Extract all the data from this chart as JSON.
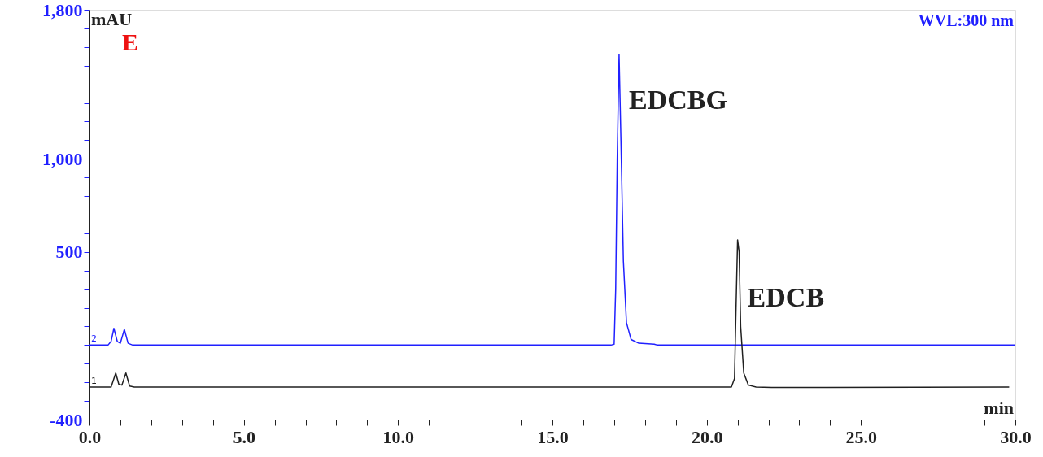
{
  "chart_data": {
    "type": "line",
    "xlabel": "min",
    "ylabel": "mAU",
    "annotations": [
      "E",
      "WVL:300 nm",
      {
        "text": "EDCBG",
        "x": 17.16,
        "y": 1560
      },
      {
        "text": "EDCB",
        "x": 21.0,
        "y": 565
      }
    ],
    "xlim": [
      0,
      30
    ],
    "ylim": [
      -400,
      1800
    ],
    "xticks": [
      {
        "value": 0,
        "label": "0.0"
      },
      {
        "value": 1,
        "label": null
      },
      {
        "value": 2,
        "label": null
      },
      {
        "value": 3,
        "label": null
      },
      {
        "value": 4,
        "label": null
      },
      {
        "value": 5,
        "label": "5.0"
      },
      {
        "value": 6,
        "label": null
      },
      {
        "value": 7,
        "label": null
      },
      {
        "value": 8,
        "label": null
      },
      {
        "value": 9,
        "label": null
      },
      {
        "value": 10,
        "label": "10.0"
      },
      {
        "value": 11,
        "label": null
      },
      {
        "value": 12,
        "label": null
      },
      {
        "value": 13,
        "label": null
      },
      {
        "value": 14,
        "label": null
      },
      {
        "value": 15,
        "label": "15.0"
      },
      {
        "value": 16,
        "label": null
      },
      {
        "value": 17,
        "label": null
      },
      {
        "value": 18,
        "label": null
      },
      {
        "value": 19,
        "label": null
      },
      {
        "value": 20,
        "label": "20.0"
      },
      {
        "value": 21,
        "label": null
      },
      {
        "value": 22,
        "label": null
      },
      {
        "value": 23,
        "label": null
      },
      {
        "value": 24,
        "label": null
      },
      {
        "value": 25,
        "label": "25.0"
      },
      {
        "value": 26,
        "label": null
      },
      {
        "value": 27,
        "label": null
      },
      {
        "value": 28,
        "label": null
      },
      {
        "value": 29,
        "label": null
      },
      {
        "value": 30,
        "label": "30.0"
      }
    ],
    "yticks": [
      {
        "value": -400,
        "label": "-400"
      },
      {
        "value": -300,
        "label": null
      },
      {
        "value": -200,
        "label": null
      },
      {
        "value": -100,
        "label": null
      },
      {
        "value": 0,
        "label": null
      },
      {
        "value": 100,
        "label": null
      },
      {
        "value": 200,
        "label": null
      },
      {
        "value": 300,
        "label": null
      },
      {
        "value": 400,
        "label": null
      },
      {
        "value": 500,
        "label": "500"
      },
      {
        "value": 600,
        "label": null
      },
      {
        "value": 700,
        "label": null
      },
      {
        "value": 800,
        "label": null
      },
      {
        "value": 900,
        "label": null
      },
      {
        "value": 1000,
        "label": "1,000"
      },
      {
        "value": 1100,
        "label": null
      },
      {
        "value": 1200,
        "label": null
      },
      {
        "value": 1300,
        "label": null
      },
      {
        "value": 1400,
        "label": null
      },
      {
        "value": 1500,
        "label": null
      },
      {
        "value": 1600,
        "label": null
      },
      {
        "value": 1700,
        "label": null
      },
      {
        "value": 1800,
        "label": "1,800"
      }
    ],
    "grid": false,
    "marker": "none",
    "line_style": "solid",
    "series": [
      {
        "name": "2",
        "color": "#2020ff",
        "x": [
          0,
          0.6,
          0.7,
          0.79,
          0.9,
          1.0,
          1.13,
          1.25,
          1.4,
          16.9,
          17.0,
          17.05,
          17.1,
          17.16,
          17.22,
          17.3,
          17.4,
          17.55,
          17.8,
          18.3,
          18.4,
          30
        ],
        "values": [
          0,
          0,
          20,
          90,
          20,
          10,
          85,
          10,
          0,
          0,
          5,
          300,
          1000,
          1560,
          1100,
          450,
          120,
          30,
          10,
          5,
          0,
          0
        ]
      },
      {
        "name": "1",
        "color": "#202020",
        "x": [
          0,
          0.7,
          0.85,
          0.95,
          1.05,
          1.18,
          1.3,
          1.45,
          20.8,
          20.9,
          20.95,
          21.0,
          21.05,
          21.1,
          21.2,
          21.35,
          21.6,
          22.1,
          29.8
        ],
        "values": [
          -225,
          -225,
          -150,
          -210,
          -215,
          -150,
          -220,
          -225,
          -225,
          -180,
          200,
          565,
          500,
          100,
          -150,
          -215,
          -225,
          -228,
          -225
        ]
      }
    ]
  }
}
